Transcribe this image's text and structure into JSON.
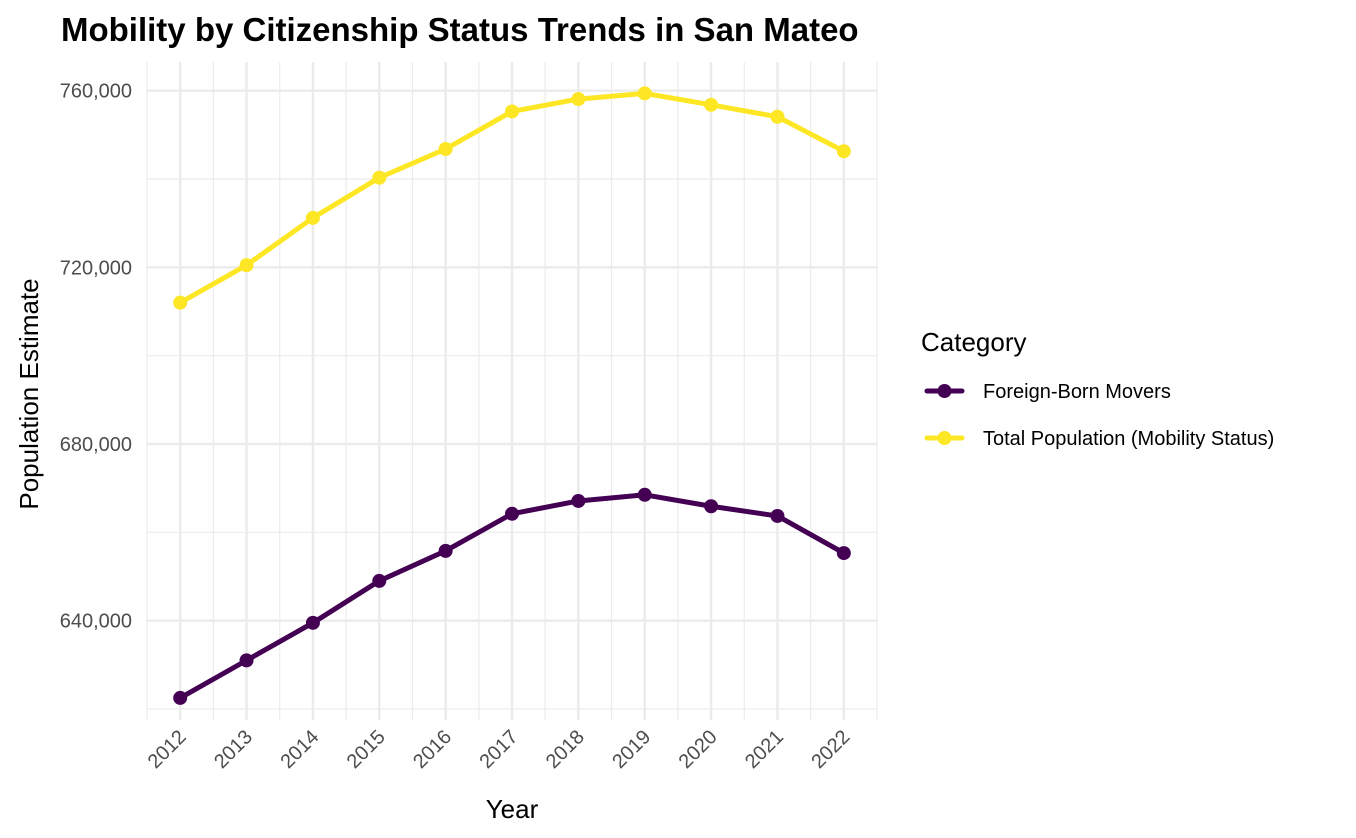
{
  "chart_data": {
    "type": "line",
    "title": "Mobility by Citizenship Status Trends in San Mateo",
    "xlabel": "Year",
    "ylabel": "Population Estimate",
    "x": [
      2012,
      2013,
      2014,
      2015,
      2016,
      2017,
      2018,
      2019,
      2020,
      2021,
      2022
    ],
    "x_tick_labels": [
      "2012",
      "2013",
      "2014",
      "2015",
      "2016",
      "2017",
      "2018",
      "2019",
      "2020",
      "2021",
      "2022"
    ],
    "y_ticks": [
      640000,
      680000,
      720000,
      760000
    ],
    "y_tick_labels": [
      "640,000",
      "680,000",
      "720,000",
      "760,000"
    ],
    "xlim": [
      2011.5,
      2022.5
    ],
    "ylim": [
      617500,
      766500
    ],
    "grid": true,
    "legend": {
      "title": "Category",
      "position": "right"
    },
    "series": [
      {
        "name": "Foreign-Born Movers",
        "color": "#440154",
        "values": [
          622500,
          631000,
          639500,
          649000,
          655800,
          664200,
          667100,
          668500,
          665900,
          663700,
          655300
        ]
      },
      {
        "name": "Total Population (Mobility Status)",
        "color": "#FDE725",
        "values": [
          712000,
          720500,
          731200,
          740300,
          746800,
          755300,
          758100,
          759400,
          756800,
          754100,
          746300
        ]
      }
    ]
  }
}
